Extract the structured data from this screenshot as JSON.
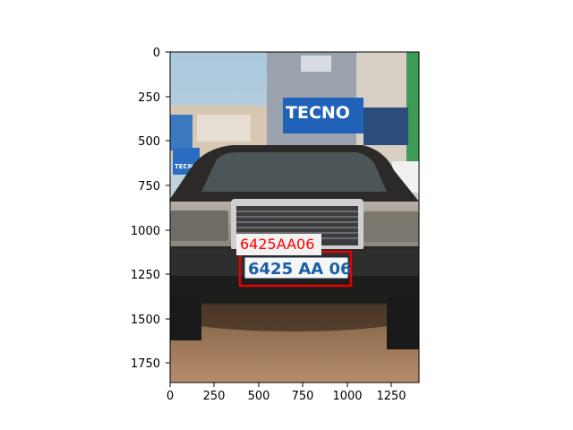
{
  "figure": {
    "axes": {
      "x_ticks": [
        "0",
        "250",
        "500",
        "750",
        "1000",
        "1250"
      ],
      "y_ticks": [
        "0",
        "250",
        "500",
        "750",
        "1000",
        "1250",
        "1500",
        "1750"
      ]
    },
    "detection": {
      "label": "6425AA06",
      "box_color": "#e60000",
      "label_color": "#ff0000",
      "label_background": "#f2f2f2"
    },
    "scene": {
      "storefront_sign": "TECNO",
      "side_sign": "TECNO",
      "plate_text": "6425 AA 06"
    }
  }
}
